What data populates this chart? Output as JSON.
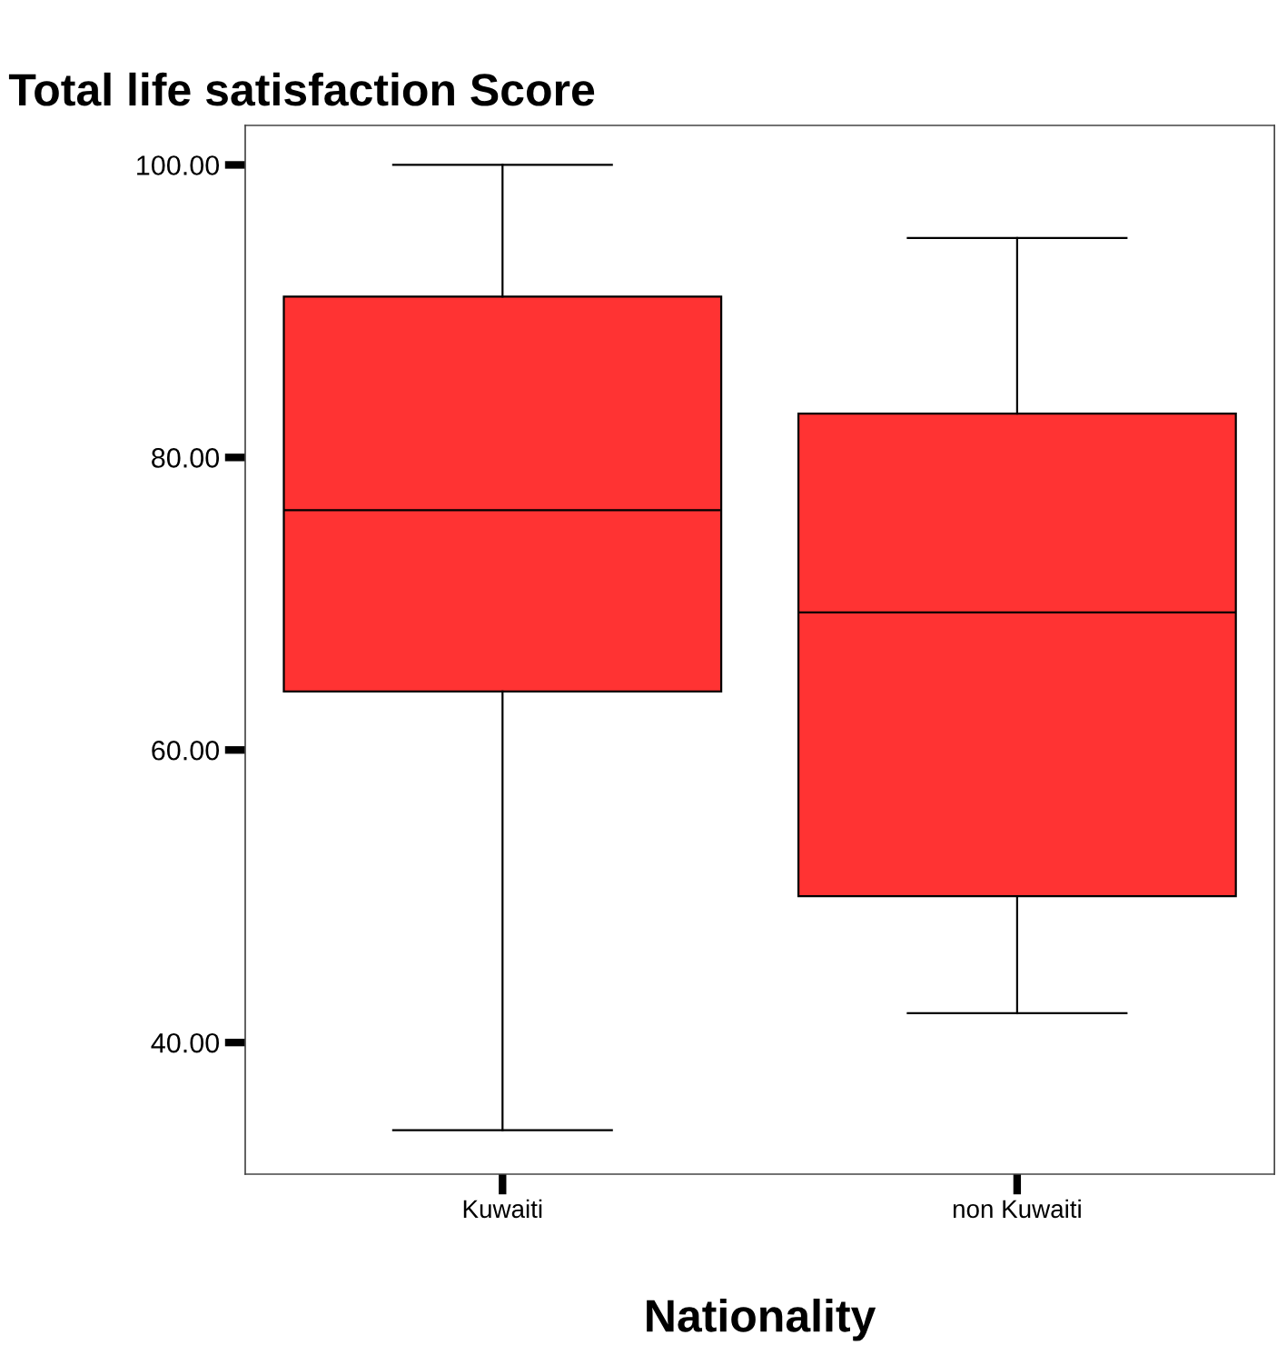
{
  "chart_data": {
    "type": "box",
    "ylabel": "Total life satisfaction Score",
    "xlabel": "Nationality",
    "categories": [
      "Kuwaiti",
      "non Kuwaiti"
    ],
    "color": "#ff3333",
    "boxes": [
      {
        "low": 34,
        "q1": 64,
        "median": 76.4,
        "q3": 91,
        "high": 100
      },
      {
        "low": 42,
        "q1": 50,
        "median": 69.4,
        "q3": 83,
        "high": 95
      }
    ],
    "ylim": [
      31,
      102.7
    ],
    "yticks": [
      {
        "value": 40,
        "label": "40.00"
      },
      {
        "value": 60,
        "label": "60.00"
      },
      {
        "value": 80,
        "label": "80.00"
      },
      {
        "value": 100,
        "label": "100.00"
      }
    ],
    "grid": false
  }
}
